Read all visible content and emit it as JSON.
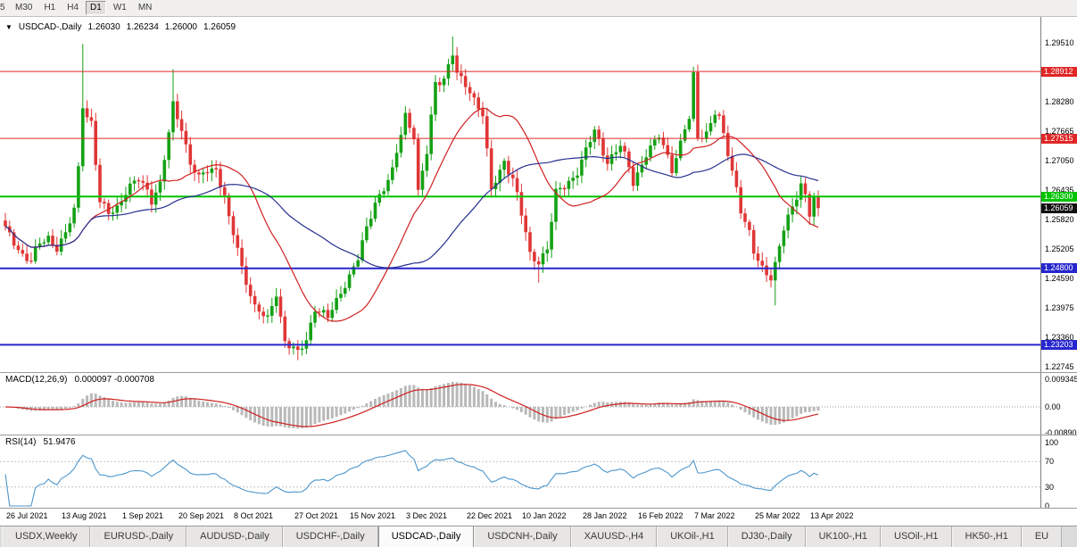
{
  "toolbar": {
    "timeframes": [
      {
        "label": "5",
        "active": false
      },
      {
        "label": "M30",
        "active": false
      },
      {
        "label": "H1",
        "active": false
      },
      {
        "label": "H4",
        "active": false
      },
      {
        "label": "D1",
        "active": true
      },
      {
        "label": "W1",
        "active": false
      },
      {
        "label": "MN",
        "active": false
      }
    ]
  },
  "main_header": {
    "dropdown_icon": "▼",
    "symbol": "USDCAD-,Daily",
    "open": "1.26030",
    "high": "1.26234",
    "low": "1.26000",
    "close": "1.26059"
  },
  "macd_header": {
    "name": "MACD(12,26,9)",
    "values": "0.000097 -0.000708"
  },
  "rsi_header": {
    "name": "RSI(14)",
    "value": "51.9476"
  },
  "dates": [
    "26 Jul 2021",
    "13 Aug 2021",
    "1 Sep 2021",
    "20 Sep 2021",
    "8 Oct 2021",
    "27 Oct 2021",
    "15 Nov 2021",
    "3 Dec 2021",
    "22 Dec 2021",
    "10 Jan 2022",
    "28 Jan 2022",
    "16 Feb 2022",
    "7 Mar 2022",
    "25 Mar 2022",
    "13 Apr 2022"
  ],
  "tabs": [
    {
      "label": "USDX,Weekly",
      "active": false
    },
    {
      "label": "EURUSD-,Daily",
      "active": false
    },
    {
      "label": "AUDUSD-,Daily",
      "active": false
    },
    {
      "label": "USDCHF-,Daily",
      "active": false
    },
    {
      "label": "USDCAD-,Daily",
      "active": true
    },
    {
      "label": "USDCNH-,Daily",
      "active": false
    },
    {
      "label": "XAUUSD-,H4",
      "active": false
    },
    {
      "label": "UKOil-,H1",
      "active": false
    },
    {
      "label": "DJ30-,Daily",
      "active": false
    },
    {
      "label": "UK100-,H1",
      "active": false
    },
    {
      "label": "USOil-,H1",
      "active": false
    },
    {
      "label": "HK50-,H1",
      "active": false
    },
    {
      "label": "EU",
      "active": false
    }
  ],
  "chart_data": {
    "type": "candlestick",
    "symbol": "USDCAD",
    "period": "Daily",
    "n": 190,
    "last_close": 1.26059,
    "price_axis_ticks": [
      1.2951,
      1.28895,
      1.2828,
      1.27665,
      1.2705,
      1.26435,
      1.2582,
      1.25205,
      1.2459,
      1.23975,
      1.2336,
      1.22745
    ],
    "close_waypoints": [
      [
        0,
        1.256
      ],
      [
        2,
        1.2535
      ],
      [
        4,
        1.251
      ],
      [
        6,
        1.2495
      ],
      [
        8,
        1.253
      ],
      [
        10,
        1.2545
      ],
      [
        12,
        1.2525
      ],
      [
        14,
        1.255
      ],
      [
        16,
        1.26
      ],
      [
        17,
        1.269
      ],
      [
        18,
        1.2825
      ],
      [
        19,
        1.28
      ],
      [
        20,
        1.2785
      ],
      [
        22,
        1.2615
      ],
      [
        24,
        1.2595
      ],
      [
        26,
        1.261
      ],
      [
        28,
        1.264
      ],
      [
        31,
        1.2665
      ],
      [
        33,
        1.2645
      ],
      [
        34,
        1.2625
      ],
      [
        36,
        1.2655
      ],
      [
        38,
        1.276
      ],
      [
        39,
        1.282
      ],
      [
        41,
        1.2775
      ],
      [
        43,
        1.27
      ],
      [
        45,
        1.2665
      ],
      [
        47,
        1.2685
      ],
      [
        49,
        1.269
      ],
      [
        51,
        1.263
      ],
      [
        52,
        1.258
      ],
      [
        54,
        1.252
      ],
      [
        55,
        1.248
      ],
      [
        57,
        1.243
      ],
      [
        58,
        1.24
      ],
      [
        60,
        1.238
      ],
      [
        61,
        1.237
      ],
      [
        63,
        1.243
      ],
      [
        65,
        1.233
      ],
      [
        66,
        1.232
      ],
      [
        68,
        1.23
      ],
      [
        70,
        1.233
      ],
      [
        72,
        1.24
      ],
      [
        74,
        1.2385
      ],
      [
        75,
        1.2375
      ],
      [
        77,
        1.241
      ],
      [
        79,
        1.245
      ],
      [
        82,
        1.25
      ],
      [
        84,
        1.256
      ],
      [
        86,
        1.262
      ],
      [
        88,
        1.265
      ],
      [
        90,
        1.268
      ],
      [
        92,
        1.276
      ],
      [
        93,
        1.28
      ],
      [
        94,
        1.278
      ],
      [
        95,
        1.276
      ],
      [
        96,
        1.264
      ],
      [
        98,
        1.272
      ],
      [
        100,
        1.2865
      ],
      [
        102,
        1.288
      ],
      [
        104,
        1.293
      ],
      [
        105,
        1.2885
      ],
      [
        106,
        1.287
      ],
      [
        108,
        1.285
      ],
      [
        110,
        1.282
      ],
      [
        111,
        1.2805
      ],
      [
        113,
        1.264
      ],
      [
        115,
        1.268
      ],
      [
        116,
        1.2705
      ],
      [
        118,
        1.267
      ],
      [
        119,
        1.2635
      ],
      [
        121,
        1.255
      ],
      [
        122,
        1.2505
      ],
      [
        124,
        1.2495
      ],
      [
        126,
        1.2525
      ],
      [
        128,
        1.2635
      ],
      [
        130,
        1.265
      ],
      [
        131,
        1.266
      ],
      [
        133,
        1.2685
      ],
      [
        134,
        1.2705
      ],
      [
        136,
        1.2745
      ],
      [
        137,
        1.2765
      ],
      [
        139,
        1.2725
      ],
      [
        140,
        1.2705
      ],
      [
        142,
        1.2725
      ],
      [
        143,
        1.2735
      ],
      [
        145,
        1.269
      ],
      [
        146,
        1.266
      ],
      [
        148,
        1.27
      ],
      [
        149,
        1.272
      ],
      [
        151,
        1.274
      ],
      [
        152,
        1.2755
      ],
      [
        154,
        1.2715
      ],
      [
        155,
        1.269
      ],
      [
        157,
        1.274
      ],
      [
        158,
        1.277
      ],
      [
        159,
        1.279
      ],
      [
        160,
        1.288
      ],
      [
        161,
        1.2755
      ],
      [
        163,
        1.2765
      ],
      [
        165,
        1.2805
      ],
      [
        166,
        1.279
      ],
      [
        168,
        1.272
      ],
      [
        170,
        1.265
      ],
      [
        171,
        1.2605
      ],
      [
        173,
        1.255
      ],
      [
        174,
        1.251
      ],
      [
        176,
        1.248
      ],
      [
        178,
        1.2465
      ],
      [
        179,
        1.249
      ],
      [
        181,
        1.256
      ],
      [
        183,
        1.2605
      ],
      [
        185,
        1.266
      ],
      [
        186,
        1.2635
      ],
      [
        187,
        1.2595
      ],
      [
        188,
        1.2625
      ],
      [
        189,
        1.26059
      ]
    ],
    "wick_overrides": [
      {
        "i": 18,
        "high": 1.2949
      },
      {
        "i": 39,
        "high": 1.2896
      },
      {
        "i": 104,
        "high": 1.2964
      },
      {
        "i": 160,
        "high": 1.2901
      },
      {
        "i": 68,
        "low": 1.2288
      },
      {
        "i": 124,
        "low": 1.245
      },
      {
        "i": 179,
        "low": 1.2403
      }
    ],
    "noise_amp": 0.0012,
    "hlines": [
      {
        "price": 1.28912,
        "label": "1.28912",
        "color": "#e02626",
        "width": 1
      },
      {
        "price": 1.27515,
        "label": "1.27515",
        "color": "#e02626",
        "width": 1
      },
      {
        "price": 1.263,
        "label": "1.26300",
        "color": "#00c300",
        "width": 2
      },
      {
        "price": 1.248,
        "label": "1.24800",
        "color": "#2626cf",
        "width": 2
      },
      {
        "price": 1.23203,
        "label": "1.23203",
        "color": "#2626cf",
        "width": 2
      }
    ],
    "current_price": {
      "value": 1.26059,
      "label": "1.26059",
      "bg": "#111111"
    },
    "moving_averages": [
      {
        "period": 20,
        "color": "#cf2020"
      },
      {
        "period": 45,
        "color": "#26308f"
      }
    ],
    "macd": {
      "fast": 12,
      "slow": 26,
      "signal": 9,
      "histogram_color": "#b9b9b9",
      "signal_color": "#cf2020",
      "axis": [
        {
          "label": "0.009345",
          "value": 0.009345
        },
        {
          "label": "0.00",
          "value": 0
        },
        {
          "label": "-0.00890",
          "value": -0.0089
        }
      ]
    },
    "rsi": {
      "period": 14,
      "color": "#4d96cc",
      "axis": [
        {
          "label": "100",
          "value": 100
        },
        {
          "label": "70",
          "value": 70
        },
        {
          "label": "30",
          "value": 30
        },
        {
          "label": "0",
          "value": 0
        }
      ],
      "levels": [
        70,
        30
      ]
    },
    "colors": {
      "up": "#14a114",
      "down": "#e03636",
      "background": "#ffffff"
    }
  }
}
